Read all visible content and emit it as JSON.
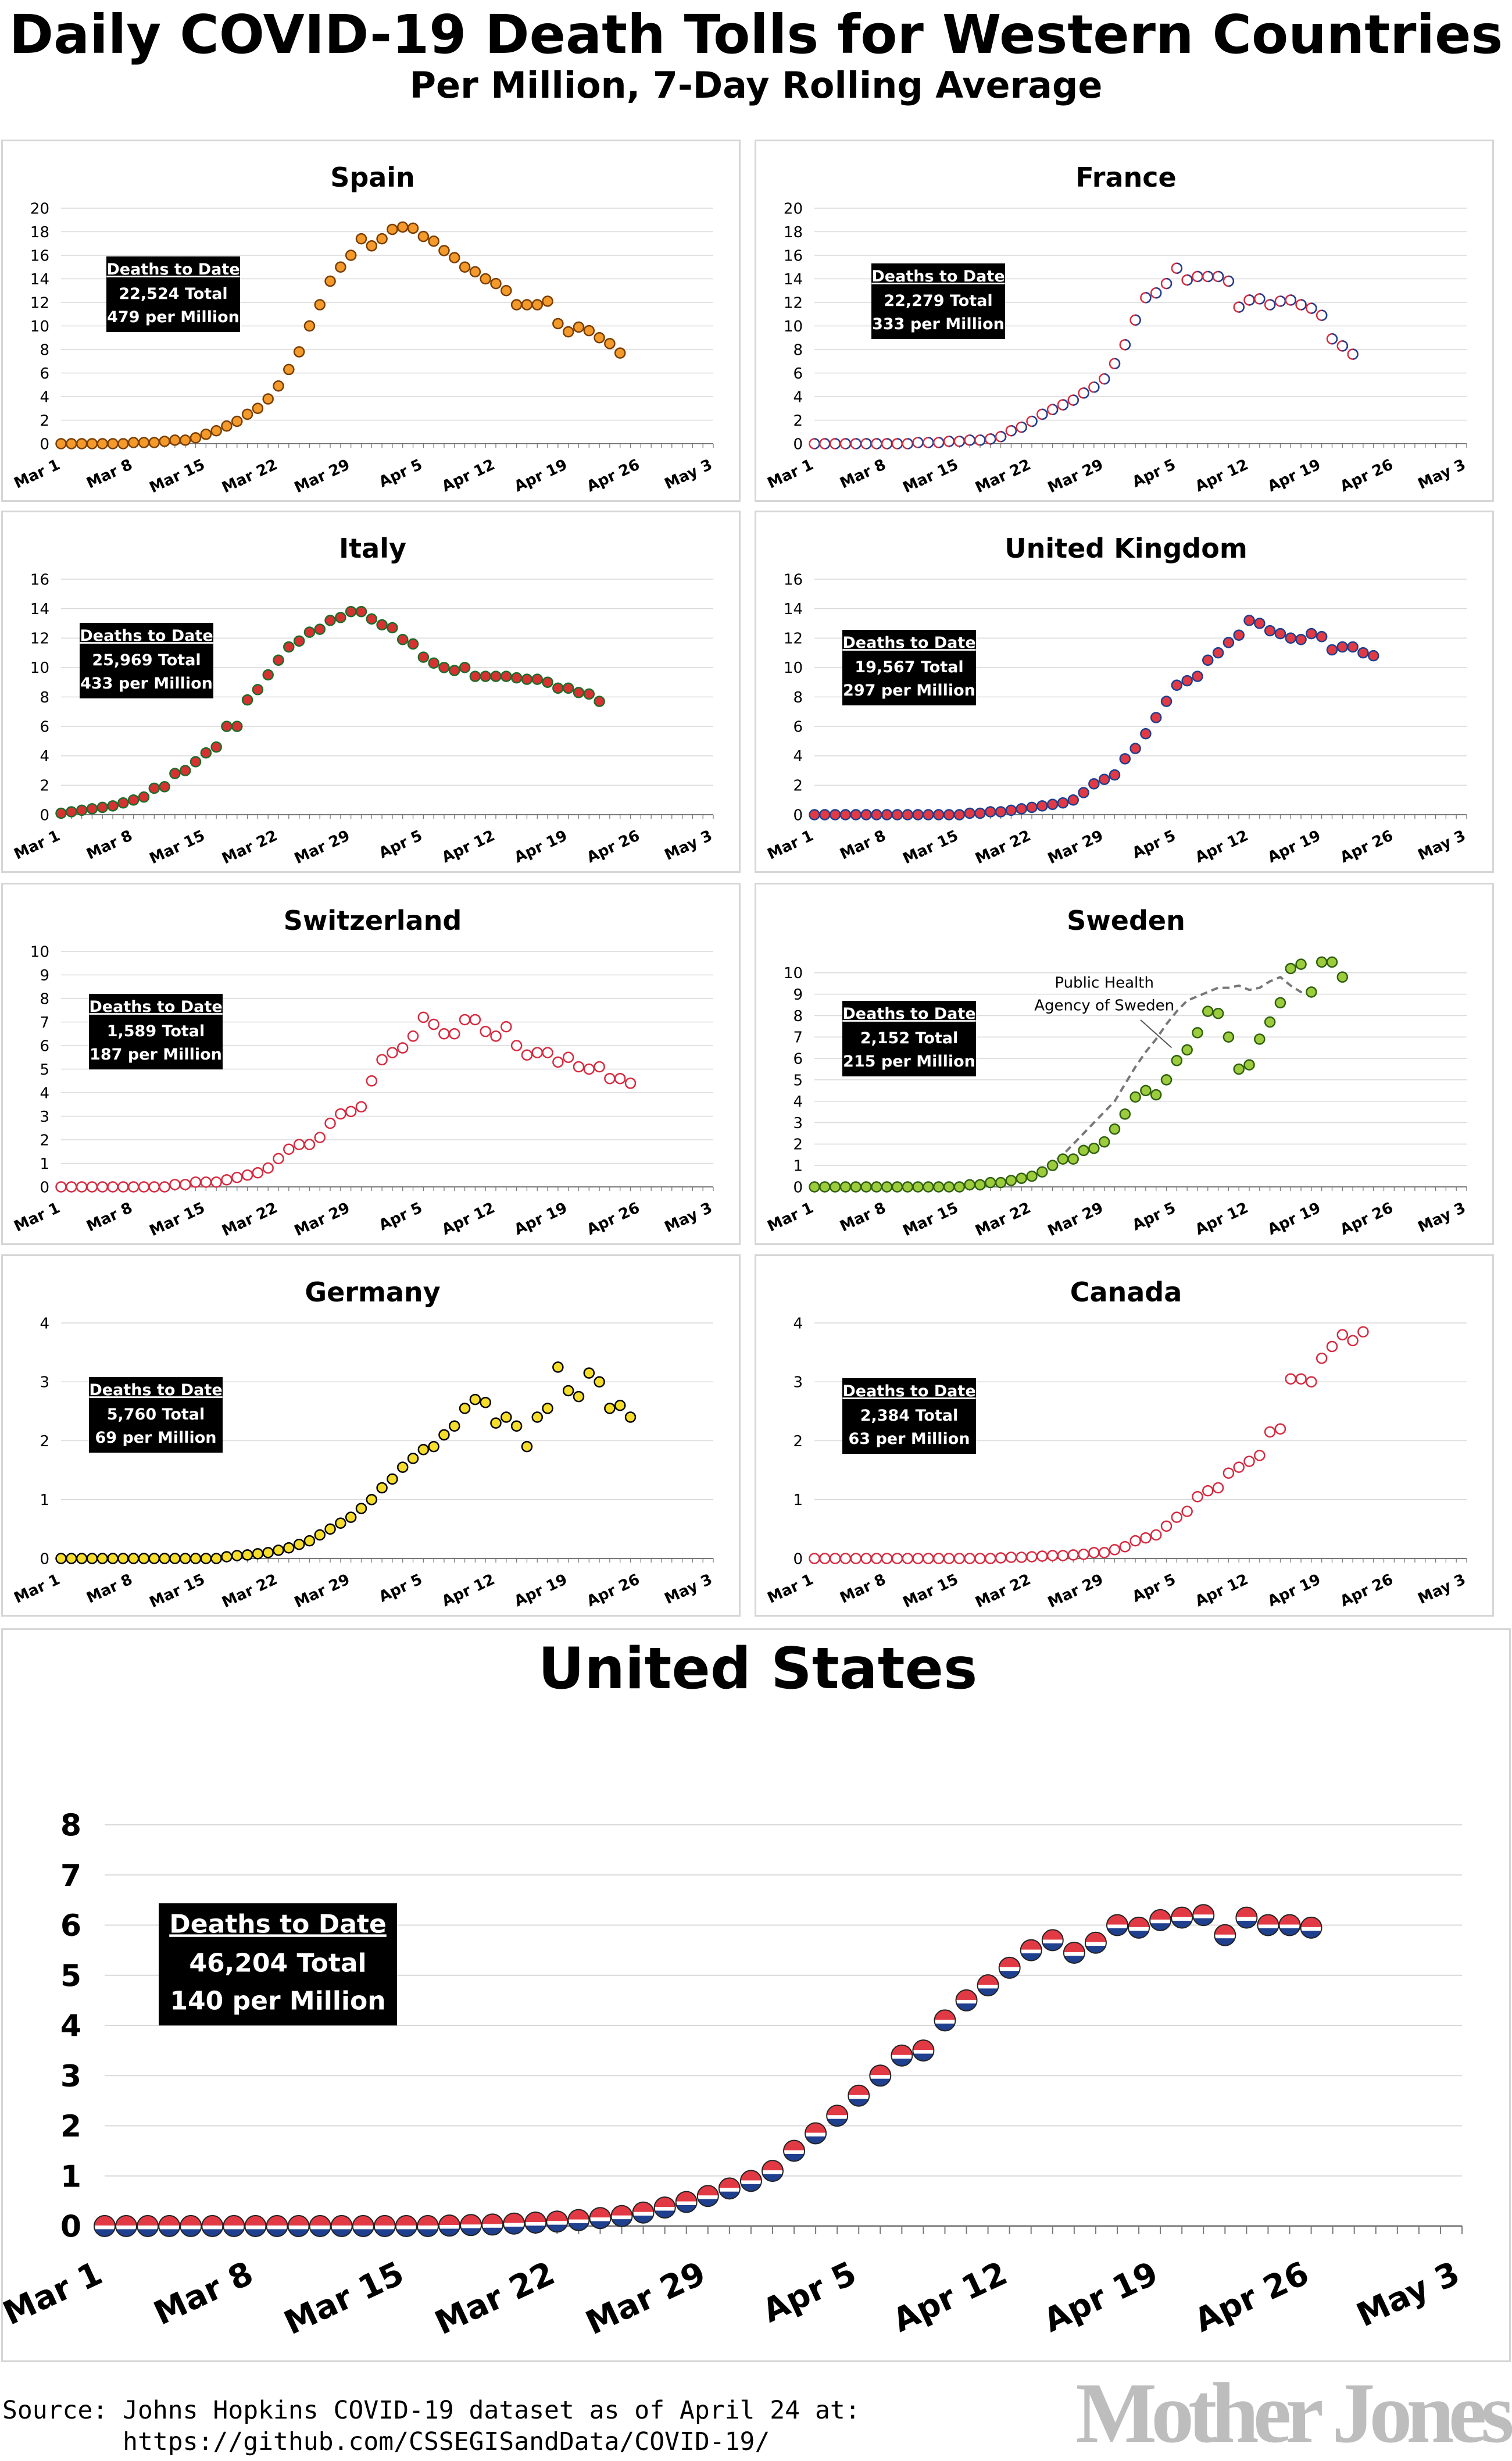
{
  "header": {
    "title": "Daily COVID-19 Death Tolls for Western Countries",
    "subtitle": "Per Million, 7-Day Rolling Average"
  },
  "footer": {
    "source_line1": "Source: Johns Hopkins COVID-19 dataset as of April 24 at:",
    "source_line2": "        https://github.com/CSSEGISandData/COVID-19/",
    "logo": "Mother Jones"
  },
  "chart_data": [
    {
      "type": "scatter",
      "title": "Spain",
      "box": {
        "heading": "Deaths to Date",
        "total": "22,524 Total",
        "per_million": "479 per Million"
      },
      "colors": {
        "fill": "#f39a2b",
        "stroke": "#7a3d00"
      },
      "ylim": [
        0,
        20
      ],
      "yticks": [
        0,
        2,
        4,
        6,
        8,
        10,
        12,
        14,
        16,
        18,
        20
      ],
      "xlim": [
        "Mar 1",
        "May 3"
      ],
      "xticks": [
        "Mar 1",
        "Mar 8",
        "Mar 15",
        "Mar 22",
        "Mar 29",
        "Apr 5",
        "Apr 12",
        "Apr 19",
        "Apr 26",
        "May 3"
      ],
      "y": [
        0,
        0,
        0,
        0,
        0,
        0,
        0,
        0.1,
        0.1,
        0.1,
        0.2,
        0.3,
        0.3,
        0.5,
        0.8,
        1.1,
        1.5,
        1.9,
        2.5,
        3.0,
        3.8,
        4.9,
        6.3,
        7.8,
        10.0,
        11.8,
        13.8,
        15.0,
        16.0,
        17.4,
        16.8,
        17.4,
        18.2,
        18.4,
        18.3,
        17.6,
        17.2,
        16.4,
        15.8,
        15.0,
        14.6,
        14.0,
        13.6,
        13.0,
        11.8,
        11.8,
        11.8,
        12.1,
        10.2,
        9.5,
        9.9,
        9.6,
        9.0,
        8.5,
        7.7
      ],
      "extra_series": []
    },
    {
      "type": "scatter",
      "title": "France",
      "box": {
        "heading": "Deaths to Date",
        "total": "22,279 Total",
        "per_million": "333 per Million"
      },
      "colors": {
        "fill": "#ffffff",
        "stroke": "#d6293e",
        "stroke2": "#1f3f8f"
      },
      "ylim": [
        0,
        20
      ],
      "yticks": [
        0,
        2,
        4,
        6,
        8,
        10,
        12,
        14,
        16,
        18,
        20
      ],
      "xlim": [
        "Mar 1",
        "May 3"
      ],
      "xticks": [
        "Mar 1",
        "Mar 8",
        "Mar 15",
        "Mar 22",
        "Mar 29",
        "Apr 5",
        "Apr 12",
        "Apr 19",
        "Apr 26",
        "May 3"
      ],
      "y": [
        0,
        0,
        0,
        0,
        0,
        0,
        0,
        0,
        0,
        0,
        0.1,
        0.1,
        0.1,
        0.2,
        0.2,
        0.3,
        0.3,
        0.4,
        0.6,
        1.1,
        1.4,
        1.9,
        2.5,
        2.9,
        3.3,
        3.7,
        4.3,
        4.8,
        5.5,
        6.8,
        8.4,
        10.5,
        12.4,
        12.8,
        13.6,
        14.9,
        13.9,
        14.2,
        14.2,
        14.2,
        13.8,
        11.6,
        12.2,
        12.3,
        11.8,
        12.1,
        12.2,
        11.8,
        11.5,
        10.9,
        8.9,
        8.3,
        7.6
      ],
      "extra_series": []
    },
    {
      "type": "scatter",
      "title": "Italy",
      "box": {
        "heading": "Deaths to Date",
        "total": "25,969 Total",
        "per_million": "433 per Million"
      },
      "colors": {
        "fill": "#d73232",
        "stroke": "#1f6b2a"
      },
      "ylim": [
        0,
        16
      ],
      "yticks": [
        0,
        2,
        4,
        6,
        8,
        10,
        12,
        14,
        16
      ],
      "xlim": [
        "Mar 1",
        "May 3"
      ],
      "xticks": [
        "Mar 1",
        "Mar 8",
        "Mar 15",
        "Mar 22",
        "Mar 29",
        "Apr 5",
        "Apr 12",
        "Apr 19",
        "Apr 26",
        "May 3"
      ],
      "y": [
        0.1,
        0.2,
        0.3,
        0.4,
        0.5,
        0.6,
        0.8,
        1.0,
        1.2,
        1.8,
        1.9,
        2.8,
        3.0,
        3.6,
        4.2,
        4.6,
        6.0,
        6.0,
        7.8,
        8.5,
        9.5,
        10.5,
        11.4,
        11.8,
        12.4,
        12.6,
        13.2,
        13.4,
        13.8,
        13.8,
        13.3,
        12.9,
        12.7,
        11.9,
        11.6,
        10.7,
        10.3,
        10.0,
        9.8,
        10.0,
        9.4,
        9.4,
        9.4,
        9.4,
        9.3,
        9.2,
        9.2,
        9.0,
        8.6,
        8.6,
        8.3,
        8.2,
        7.7
      ],
      "extra_series": []
    },
    {
      "type": "scatter",
      "title": "United Kingdom",
      "box": {
        "heading": "Deaths to Date",
        "total": "19,567 Total",
        "per_million": "297 per Million"
      },
      "colors": {
        "fill": "#e23a44",
        "stroke": "#1f3f8f"
      },
      "ylim": [
        0,
        16
      ],
      "yticks": [
        0,
        2,
        4,
        6,
        8,
        10,
        12,
        14,
        16
      ],
      "xlim": [
        "Mar 1",
        "May 3"
      ],
      "xticks": [
        "Mar 1",
        "Mar 8",
        "Mar 15",
        "Mar 22",
        "Mar 29",
        "Apr 5",
        "Apr 12",
        "Apr 19",
        "Apr 26",
        "May 3"
      ],
      "y": [
        0,
        0,
        0,
        0,
        0,
        0,
        0,
        0,
        0,
        0,
        0,
        0,
        0,
        0,
        0,
        0.1,
        0.1,
        0.2,
        0.2,
        0.3,
        0.4,
        0.5,
        0.6,
        0.7,
        0.8,
        1.0,
        1.5,
        2.1,
        2.4,
        2.7,
        3.8,
        4.5,
        5.5,
        6.6,
        7.7,
        8.8,
        9.1,
        9.4,
        10.5,
        11.0,
        11.7,
        12.2,
        13.2,
        13.0,
        12.5,
        12.3,
        12.0,
        11.9,
        12.3,
        12.1,
        11.2,
        11.4,
        11.4,
        11.0,
        10.8
      ],
      "extra_series": []
    },
    {
      "type": "scatter",
      "title": "Switzerland",
      "box": {
        "heading": "Deaths to Date",
        "total": "1,589 Total",
        "per_million": "187 per Million"
      },
      "colors": {
        "fill": "#ffffff",
        "stroke": "#d6293e"
      },
      "ylim": [
        0,
        10
      ],
      "yticks": [
        0,
        1,
        2,
        3,
        4,
        5,
        6,
        7,
        8,
        9,
        10
      ],
      "xlim": [
        "Mar 1",
        "May 3"
      ],
      "xticks": [
        "Mar 1",
        "Mar 8",
        "Mar 15",
        "Mar 22",
        "Mar 29",
        "Apr 5",
        "Apr 12",
        "Apr 19",
        "Apr 26",
        "May 3"
      ],
      "y": [
        0,
        0,
        0,
        0,
        0,
        0,
        0,
        0,
        0,
        0,
        0,
        0.1,
        0.1,
        0.2,
        0.2,
        0.2,
        0.3,
        0.4,
        0.5,
        0.6,
        0.8,
        1.2,
        1.6,
        1.8,
        1.8,
        2.1,
        2.7,
        3.1,
        3.2,
        3.4,
        4.5,
        5.4,
        5.7,
        5.9,
        6.4,
        7.2,
        6.9,
        6.5,
        6.5,
        7.1,
        7.1,
        6.6,
        6.4,
        6.8,
        6.0,
        5.6,
        5.7,
        5.7,
        5.3,
        5.5,
        5.1,
        5.0,
        5.1,
        4.6,
        4.6,
        4.4
      ],
      "extra_series": []
    },
    {
      "type": "scatter",
      "title": "Sweden",
      "box": {
        "heading": "Deaths to Date",
        "total": "2,152 Total",
        "per_million": "215 per Million"
      },
      "colors": {
        "fill": "#9ccc3c",
        "stroke": "#2f5f10",
        "dashed": "#777777"
      },
      "annotation_line1": "Public Health",
      "annotation_line2": "Agency of Sweden",
      "ylim": [
        0,
        11
      ],
      "yticks": [
        0,
        1,
        2,
        3,
        4,
        5,
        6,
        7,
        8,
        9,
        10
      ],
      "xlim": [
        "Mar 1",
        "May 3"
      ],
      "xticks": [
        "Mar 1",
        "Mar 8",
        "Mar 15",
        "Mar 22",
        "Mar 29",
        "Apr 5",
        "Apr 12",
        "Apr 19",
        "Apr 26",
        "May 3"
      ],
      "y": [
        0,
        0,
        0,
        0,
        0,
        0,
        0,
        0,
        0,
        0,
        0,
        0,
        0,
        0,
        0,
        0.1,
        0.1,
        0.2,
        0.2,
        0.3,
        0.4,
        0.5,
        0.7,
        1.0,
        1.3,
        1.3,
        1.7,
        1.8,
        2.1,
        2.7,
        3.4,
        4.2,
        4.5,
        4.3,
        5.0,
        5.9,
        6.4,
        7.2,
        8.2,
        8.1,
        7.0,
        5.5,
        5.7,
        6.9,
        7.7,
        8.6,
        10.2,
        10.4,
        9.1,
        10.5,
        10.5,
        9.8
      ],
      "extra_series": [
        {
          "name": "Public Health Agency of Sweden",
          "style": "dashed",
          "x_start": 15,
          "y": [
            0.1,
            0.1,
            0.2,
            0.2,
            0.3,
            0.4,
            0.6,
            0.8,
            1.1,
            1.5,
            2.0,
            2.5,
            3.0,
            3.5,
            4.0,
            4.8,
            5.6,
            6.3,
            6.9,
            7.6,
            8.2,
            8.7,
            8.9,
            9.1,
            9.3,
            9.3,
            9.4,
            9.2,
            9.3,
            9.6,
            9.8,
            9.4,
            9.1,
            9.1
          ]
        }
      ]
    },
    {
      "type": "scatter",
      "title": "Germany",
      "box": {
        "heading": "Deaths to Date",
        "total": "5,760 Total",
        "per_million": "69 per Million"
      },
      "colors": {
        "fill": "#f5dd2a",
        "stroke": "#000000"
      },
      "ylim": [
        0,
        4
      ],
      "yticks": [
        0,
        1,
        2,
        3,
        4
      ],
      "xlim": [
        "Mar 1",
        "May 3"
      ],
      "xticks": [
        "Mar 1",
        "Mar 8",
        "Mar 15",
        "Mar 22",
        "Mar 29",
        "Apr 5",
        "Apr 12",
        "Apr 19",
        "Apr 26",
        "May 3"
      ],
      "y": [
        0,
        0,
        0,
        0,
        0,
        0,
        0,
        0,
        0,
        0,
        0,
        0,
        0,
        0,
        0,
        0,
        0.03,
        0.05,
        0.06,
        0.08,
        0.1,
        0.14,
        0.18,
        0.24,
        0.3,
        0.4,
        0.5,
        0.6,
        0.7,
        0.85,
        1.0,
        1.2,
        1.35,
        1.55,
        1.7,
        1.85,
        1.9,
        2.1,
        2.25,
        2.55,
        2.7,
        2.65,
        2.3,
        2.4,
        2.25,
        1.9,
        2.4,
        2.55,
        3.25,
        2.85,
        2.75,
        3.15,
        3.0,
        2.55,
        2.6,
        2.4
      ],
      "extra_series": []
    },
    {
      "type": "scatter",
      "title": "Canada",
      "box": {
        "heading": "Deaths to Date",
        "total": "2,384 Total",
        "per_million": "63 per Million"
      },
      "colors": {
        "fill": "#ffffff",
        "stroke": "#d6293e"
      },
      "ylim": [
        0,
        4
      ],
      "yticks": [
        0,
        1,
        2,
        3,
        4
      ],
      "xlim": [
        "Mar 1",
        "May 3"
      ],
      "xticks": [
        "Mar 1",
        "Mar 8",
        "Mar 15",
        "Mar 22",
        "Mar 29",
        "Apr 5",
        "Apr 12",
        "Apr 19",
        "Apr 26",
        "May 3"
      ],
      "y": [
        0,
        0,
        0,
        0,
        0,
        0,
        0,
        0,
        0,
        0,
        0,
        0,
        0,
        0,
        0,
        0,
        0,
        0,
        0.01,
        0.02,
        0.02,
        0.03,
        0.04,
        0.05,
        0.05,
        0.06,
        0.07,
        0.1,
        0.1,
        0.15,
        0.2,
        0.3,
        0.35,
        0.4,
        0.55,
        0.7,
        0.8,
        1.05,
        1.15,
        1.2,
        1.45,
        1.55,
        1.65,
        1.75,
        2.15,
        2.2,
        3.05,
        3.05,
        3.0,
        3.4,
        3.6,
        3.8,
        3.7,
        3.85
      ],
      "extra_series": []
    },
    {
      "type": "scatter",
      "title": "United States",
      "box": {
        "heading": "Deaths to Date",
        "total": "46,204 Total",
        "per_million": "140 per Million"
      },
      "colors": {
        "top": "#e23a44",
        "band": "#ffffff",
        "bottom": "#1f3f8f",
        "stroke": "#222222"
      },
      "ylim": [
        0,
        8
      ],
      "yticks": [
        0,
        1,
        2,
        3,
        4,
        5,
        6,
        7,
        8
      ],
      "xlim": [
        "Mar 1",
        "May 3"
      ],
      "xticks": [
        "Mar 1",
        "Mar 8",
        "Mar 15",
        "Mar 22",
        "Mar 29",
        "Apr 5",
        "Apr 12",
        "Apr 19",
        "Apr 26",
        "May 3"
      ],
      "y": [
        0,
        0,
        0,
        0,
        0,
        0,
        0,
        0,
        0,
        0,
        0,
        0,
        0,
        0,
        0,
        0,
        0.01,
        0.02,
        0.03,
        0.05,
        0.07,
        0.09,
        0.12,
        0.16,
        0.2,
        0.27,
        0.37,
        0.48,
        0.6,
        0.75,
        0.9,
        1.1,
        1.5,
        1.85,
        2.2,
        2.6,
        3.0,
        3.4,
        3.5,
        4.1,
        4.5,
        4.8,
        5.15,
        5.5,
        5.7,
        5.45,
        5.65,
        6.0,
        5.95,
        6.1,
        6.15,
        6.2,
        5.8,
        6.15,
        6.0,
        6.0,
        5.95
      ],
      "extra_series": []
    }
  ]
}
